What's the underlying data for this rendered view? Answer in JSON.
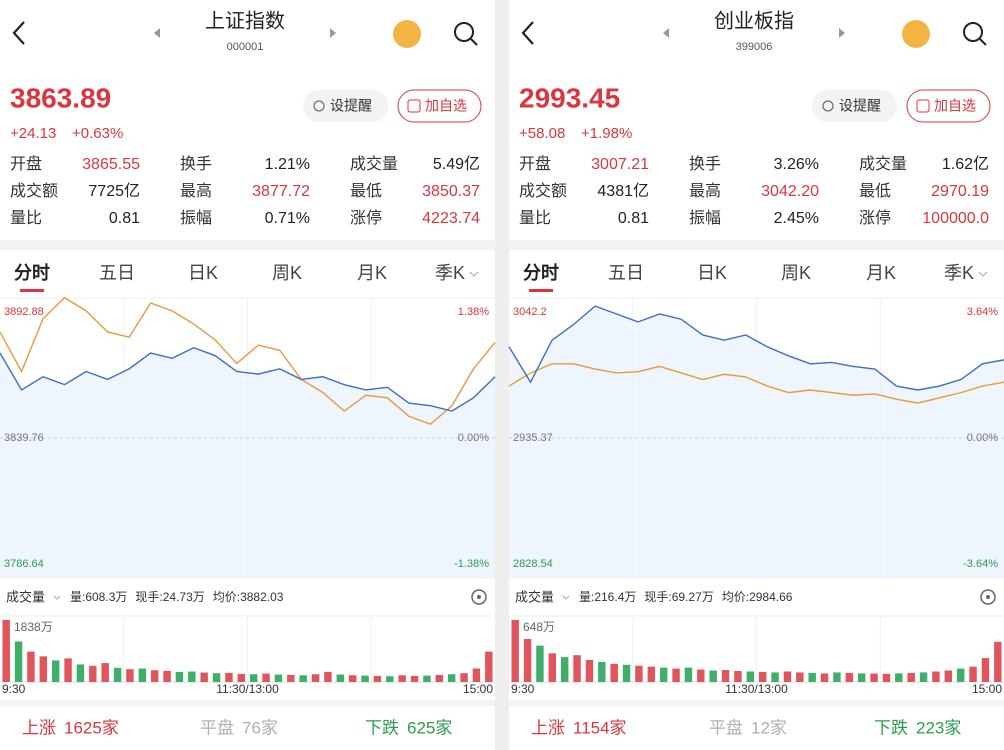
{
  "panels": [
    {
      "title": "上证指数",
      "code": "000001",
      "price": "3863.89",
      "change": "+24.13",
      "change_pct": "+0.63%",
      "buttons": [
        "设提醒",
        "加自选"
      ],
      "stats": [
        {
          "label": "开盘",
          "value": "3865.55",
          "color": "#d9363e"
        },
        {
          "label": "换手",
          "value": "1.21%",
          "color": "#222222"
        },
        {
          "label": "成交量",
          "value": "5.49亿",
          "color": "#222222"
        },
        {
          "label": "成交额",
          "value": "7725亿",
          "color": "#222222"
        },
        {
          "label": "最高",
          "value": "3877.72",
          "color": "#d9363e"
        },
        {
          "label": "最低",
          "value": "3850.37",
          "color": "#d9363e"
        },
        {
          "label": "量比",
          "value": "0.81",
          "color": "#222222"
        },
        {
          "label": "振幅",
          "value": "0.71%",
          "color": "#222222"
        },
        {
          "label": "涨停",
          "value": "4223.74",
          "color": "#d9363e"
        }
      ],
      "tabs": [
        "分时",
        "五日",
        "日K",
        "周K",
        "月K",
        "季K"
      ],
      "breadth": [
        {
          "label": "上涨",
          "value": "1625家",
          "color": "#d9363e"
        },
        {
          "label": "平盘",
          "value": "76家",
          "color": "#b0b0b0"
        },
        {
          "label": "下跌",
          "value": "625家",
          "color": "#2a9d4f"
        }
      ]
    },
    {
      "title": "创业板指",
      "code": "399006",
      "price": "2993.45",
      "change": "+58.08",
      "change_pct": "+1.98%",
      "buttons": [
        "设提醒",
        "加自选"
      ],
      "stats": [
        {
          "label": "开盘",
          "value": "3007.21",
          "color": "#d9363e"
        },
        {
          "label": "换手",
          "value": "3.26%",
          "color": "#222222"
        },
        {
          "label": "成交量",
          "value": "1.62亿",
          "color": "#222222"
        },
        {
          "label": "成交额",
          "value": "4381亿",
          "color": "#222222"
        },
        {
          "label": "最高",
          "value": "3042.20",
          "color": "#d9363e"
        },
        {
          "label": "最低",
          "value": "2970.19",
          "color": "#d9363e"
        },
        {
          "label": "量比",
          "value": "0.81",
          "color": "#222222"
        },
        {
          "label": "振幅",
          "value": "2.45%",
          "color": "#222222"
        },
        {
          "label": "涨停",
          "value": "100000.0",
          "color": "#d9363e"
        }
      ],
      "tabs": [
        "分时",
        "五日",
        "日K",
        "周K",
        "月K",
        "季K"
      ],
      "breadth": [
        {
          "label": "上涨",
          "value": "1154家",
          "color": "#d9363e"
        },
        {
          "label": "平盘",
          "value": "12家",
          "color": "#b0b0b0"
        },
        {
          "label": "下跌",
          "value": "223家",
          "color": "#2a9d4f"
        }
      ]
    }
  ],
  "chart_data": [
    {
      "type": "line",
      "ylim": [
        3786.64,
        3892.88
      ],
      "yticks": [
        3786.64,
        3839.76,
        3892.88
      ],
      "y2lim": [
        -1.38,
        1.38
      ],
      "y2ticks": [
        {
          "value": -1.38,
          "label": "-1.38%"
        },
        {
          "value": 0,
          "label": "0.00%"
        },
        {
          "value": 1.38,
          "label": "1.38%"
        }
      ],
      "series": [
        {
          "color": "#3b6fc4",
          "values": [
            3872,
            3858,
            3863,
            3860,
            3865,
            3862,
            3866,
            3872,
            3870,
            3874,
            3871,
            3865,
            3864,
            3866,
            3862,
            3863,
            3860,
            3858,
            3859,
            3853,
            3852,
            3850,
            3855,
            3863
          ]
        },
        {
          "color": "#e69a3c",
          "values": [
            3880,
            3865,
            3885,
            3893,
            3888,
            3880,
            3878,
            3891,
            3888,
            3883,
            3877,
            3868,
            3875,
            3873,
            3862,
            3857,
            3850,
            3856,
            3855,
            3848,
            3845,
            3852,
            3866,
            3876
          ]
        }
      ]
    },
    {
      "type": "bar",
      "title": "成交量",
      "annotations": [
        "量:608.3万",
        "现手:24.73万",
        "均价:3882.03"
      ],
      "ylim": [
        0,
        1838
      ],
      "yticks": [
        {
          "value": 1838,
          "label": "1838万"
        }
      ],
      "x_labels": [
        "9:30",
        "11:30/13:00",
        "15:00"
      ],
      "values": [
        1838,
        1200,
        900,
        760,
        640,
        700,
        520,
        480,
        560,
        420,
        380,
        400,
        350,
        330,
        300,
        310,
        280,
        260,
        270,
        240,
        230,
        250,
        220,
        210,
        200,
        230,
        300,
        220,
        200,
        190,
        180,
        170,
        200,
        180,
        190,
        210,
        230,
        260,
        400,
        900
      ],
      "up": [
        true,
        false,
        true,
        true,
        false,
        true,
        false,
        true,
        true,
        false,
        true,
        false,
        true,
        true,
        false,
        false,
        true,
        false,
        true,
        true,
        false,
        true,
        false,
        true,
        false,
        true,
        true,
        false,
        true,
        false,
        true,
        false,
        true,
        true,
        false,
        true,
        false,
        true,
        true,
        true
      ]
    },
    {
      "type": "line",
      "ylim": [
        2828.54,
        3042.2
      ],
      "yticks": [
        2828.54,
        2935.37,
        3042.2
      ],
      "y2lim": [
        -3.64,
        3.64
      ],
      "y2ticks": [
        {
          "value": -3.64,
          "label": "-3.64%"
        },
        {
          "value": 0,
          "label": "0.00%"
        },
        {
          "value": 3.64,
          "label": "3.64%"
        }
      ],
      "series": [
        {
          "color": "#3b6fc4",
          "values": [
            3005,
            2978,
            3010,
            3022,
            3036,
            3030,
            3024,
            3030,
            3026,
            3014,
            3010,
            3014,
            3005,
            2998,
            2992,
            2993,
            2990,
            2988,
            2975,
            2972,
            2975,
            2980,
            2992,
            2995
          ]
        },
        {
          "color": "#e69a3c",
          "values": [
            2975,
            2985,
            2992,
            2992,
            2988,
            2985,
            2986,
            2990,
            2985,
            2980,
            2984,
            2982,
            2975,
            2970,
            2972,
            2970,
            2968,
            2969,
            2965,
            2962,
            2966,
            2970,
            2975,
            2978
          ]
        }
      ]
    },
    {
      "type": "bar",
      "title": "成交量",
      "annotations": [
        "量:216.4万",
        "现手:69.27万",
        "均价:2984.66"
      ],
      "ylim": [
        0,
        648
      ],
      "yticks": [
        {
          "value": 648,
          "label": "648万"
        }
      ],
      "x_labels": [
        "9:30",
        "11:30/13:00",
        "15:00"
      ],
      "values": [
        648,
        450,
        380,
        300,
        260,
        280,
        230,
        210,
        190,
        180,
        170,
        160,
        150,
        140,
        150,
        130,
        120,
        125,
        115,
        110,
        105,
        100,
        110,
        100,
        95,
        90,
        100,
        95,
        90,
        88,
        85,
        90,
        95,
        100,
        110,
        120,
        140,
        160,
        250,
        420
      ],
      "up": [
        true,
        true,
        false,
        true,
        false,
        true,
        true,
        false,
        true,
        false,
        true,
        true,
        false,
        true,
        false,
        true,
        false,
        true,
        true,
        false,
        true,
        false,
        true,
        true,
        false,
        true,
        false,
        true,
        false,
        true,
        true,
        false,
        true,
        false,
        true,
        true,
        false,
        true,
        true,
        true
      ]
    }
  ]
}
